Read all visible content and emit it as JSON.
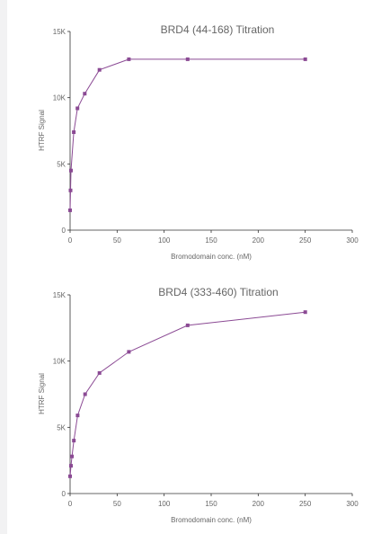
{
  "charts": [
    {
      "title": "BRD4 (44-168) Titration",
      "xlabel": "Bromodomain conc. (nM)",
      "ylabel": "HTRF Signal",
      "x_ticks": [
        "0",
        "50",
        "100",
        "150",
        "200",
        "250",
        "300"
      ],
      "y_ticks": [
        "0",
        "5K",
        "10K",
        "15K"
      ]
    },
    {
      "title": "BRD4 (333-460) Titration",
      "xlabel": "Bromodomain conc. (nM)",
      "ylabel": "HTRF Signal",
      "x_ticks": [
        "0",
        "50",
        "100",
        "150",
        "200",
        "250",
        "300"
      ],
      "y_ticks": [
        "0",
        "5K",
        "10K",
        "15K"
      ]
    }
  ],
  "chart_data": [
    {
      "type": "line",
      "title": "BRD4 (44-168) Titration",
      "xlabel": "Bromodomain conc. (nM)",
      "ylabel": "HTRF Signal",
      "xlim": [
        0,
        300
      ],
      "ylim": [
        0,
        15000
      ],
      "x_ticks": [
        0,
        50,
        100,
        150,
        200,
        250,
        300
      ],
      "y_ticks": [
        0,
        5000,
        10000,
        15000
      ],
      "grid": false,
      "color": "#8b4a94",
      "series": [
        {
          "x": [
            0,
            0.5,
            1,
            3.9,
            7.8,
            15.6,
            31.25,
            62.5,
            125,
            250
          ],
          "y": [
            1500,
            3000,
            4500,
            7400,
            9200,
            10300,
            12100,
            12900,
            12900,
            12900
          ]
        }
      ]
    },
    {
      "type": "line",
      "title": "BRD4 (333-460) Titration",
      "xlabel": "Bromodomain conc. (nM)",
      "ylabel": "HTRF Signal",
      "xlim": [
        0,
        300
      ],
      "ylim": [
        0,
        15000
      ],
      "x_ticks": [
        0,
        50,
        100,
        150,
        200,
        250,
        300
      ],
      "y_ticks": [
        0,
        5000,
        10000,
        15000
      ],
      "grid": false,
      "color": "#8b4a94",
      "series": [
        {
          "x": [
            0,
            1,
            2,
            4,
            8,
            16,
            31.25,
            62.5,
            125,
            250
          ],
          "y": [
            1300,
            2100,
            2800,
            4000,
            5900,
            7500,
            9100,
            10700,
            12700,
            13700
          ]
        }
      ]
    }
  ]
}
